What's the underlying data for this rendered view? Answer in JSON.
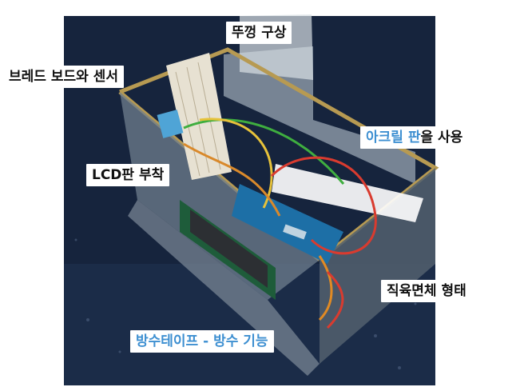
{
  "labels": {
    "lid": "뚜껑 구상",
    "breadboard_sensor": "브레드 보드와 센서",
    "acrylic_highlight": "아크릴 판",
    "acrylic_rest": "을 사용",
    "lcd": "LCD판 부착",
    "cuboid": "직육면체 형태",
    "waterproof": "방수테이프 - 방수 기능"
  },
  "colors": {
    "label_text": "#111111",
    "label_accent": "#3d8fd1",
    "label_bg": "#ffffff"
  }
}
